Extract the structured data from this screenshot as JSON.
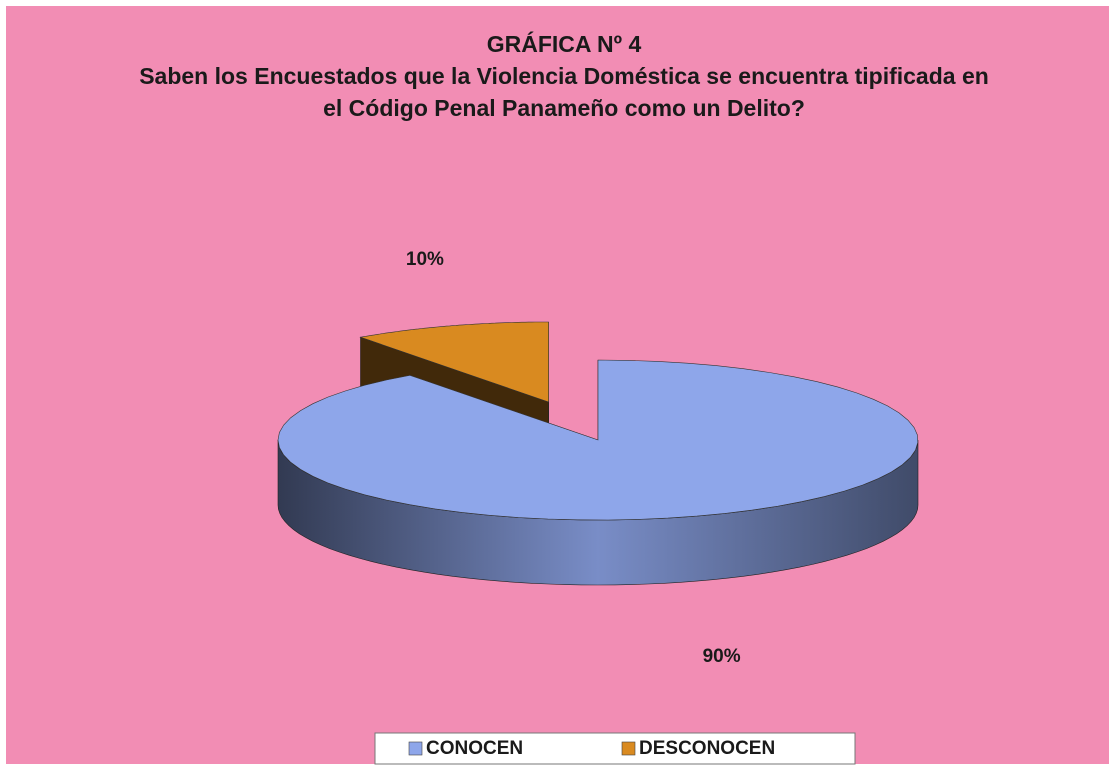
{
  "chart_data": {
    "type": "pie3d",
    "title": "GRÁFICA Nº 4",
    "subtitle": "Saben los Encuestados que la Violencia Doméstica se encuentra tipificada en el Código Penal Panameño como un Delito?",
    "categories": [
      "CONOCEN",
      "DESCONOCEN"
    ],
    "values": [
      90,
      10
    ],
    "value_labels": [
      "90%",
      "10%"
    ],
    "colors": [
      "#8ea6ea",
      "#d98a20"
    ],
    "exploded": [
      false,
      true
    ],
    "legend": "bottom"
  }
}
